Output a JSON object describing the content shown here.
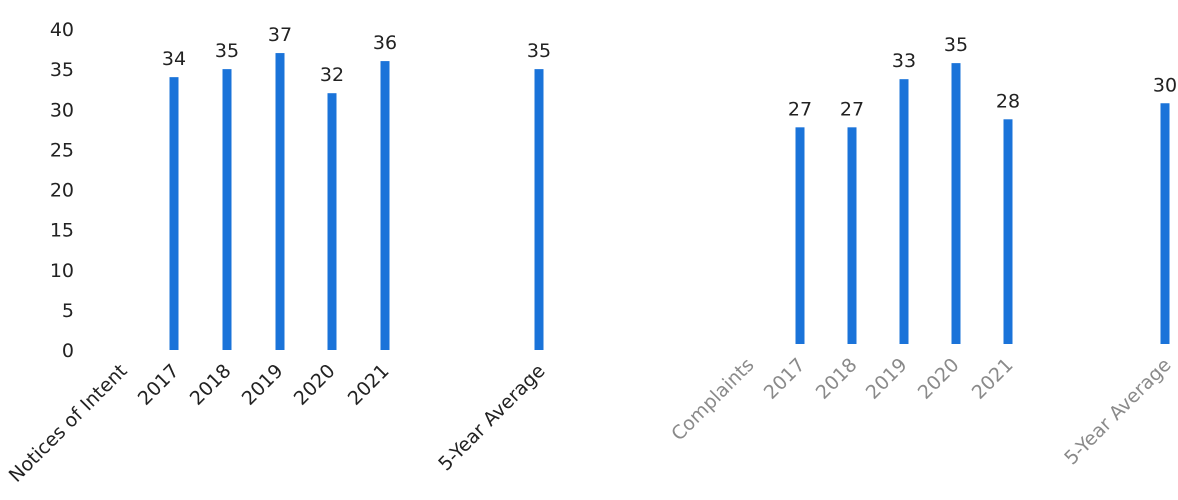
{
  "chart_data": [
    {
      "type": "bar",
      "categories": [
        "Notices of Intent",
        "2017",
        "2018",
        "2019",
        "2020",
        "2021",
        "5-Year Average"
      ],
      "values": [
        null,
        34,
        35,
        37,
        32,
        36,
        35
      ],
      "data_labels": [
        "",
        "34",
        "35",
        "37",
        "32",
        "36",
        "35"
      ],
      "yticks": [
        "0",
        "5",
        "10",
        "15",
        "20",
        "25",
        "30",
        "35",
        "40"
      ],
      "ylim": [
        0,
        40
      ],
      "grid": false,
      "bar_color": "#1a73d9"
    },
    {
      "type": "bar",
      "categories": [
        "Complaints",
        "2017",
        "2018",
        "2019",
        "2020",
        "2021",
        "5-Year Average"
      ],
      "values": [
        null,
        27,
        27,
        33,
        35,
        28,
        30
      ],
      "data_labels": [
        "",
        "27",
        "27",
        "33",
        "35",
        "28",
        "30"
      ],
      "yticks": [],
      "ylim": [
        0,
        40
      ],
      "grid": false,
      "bar_color": "#1a73d9"
    }
  ]
}
